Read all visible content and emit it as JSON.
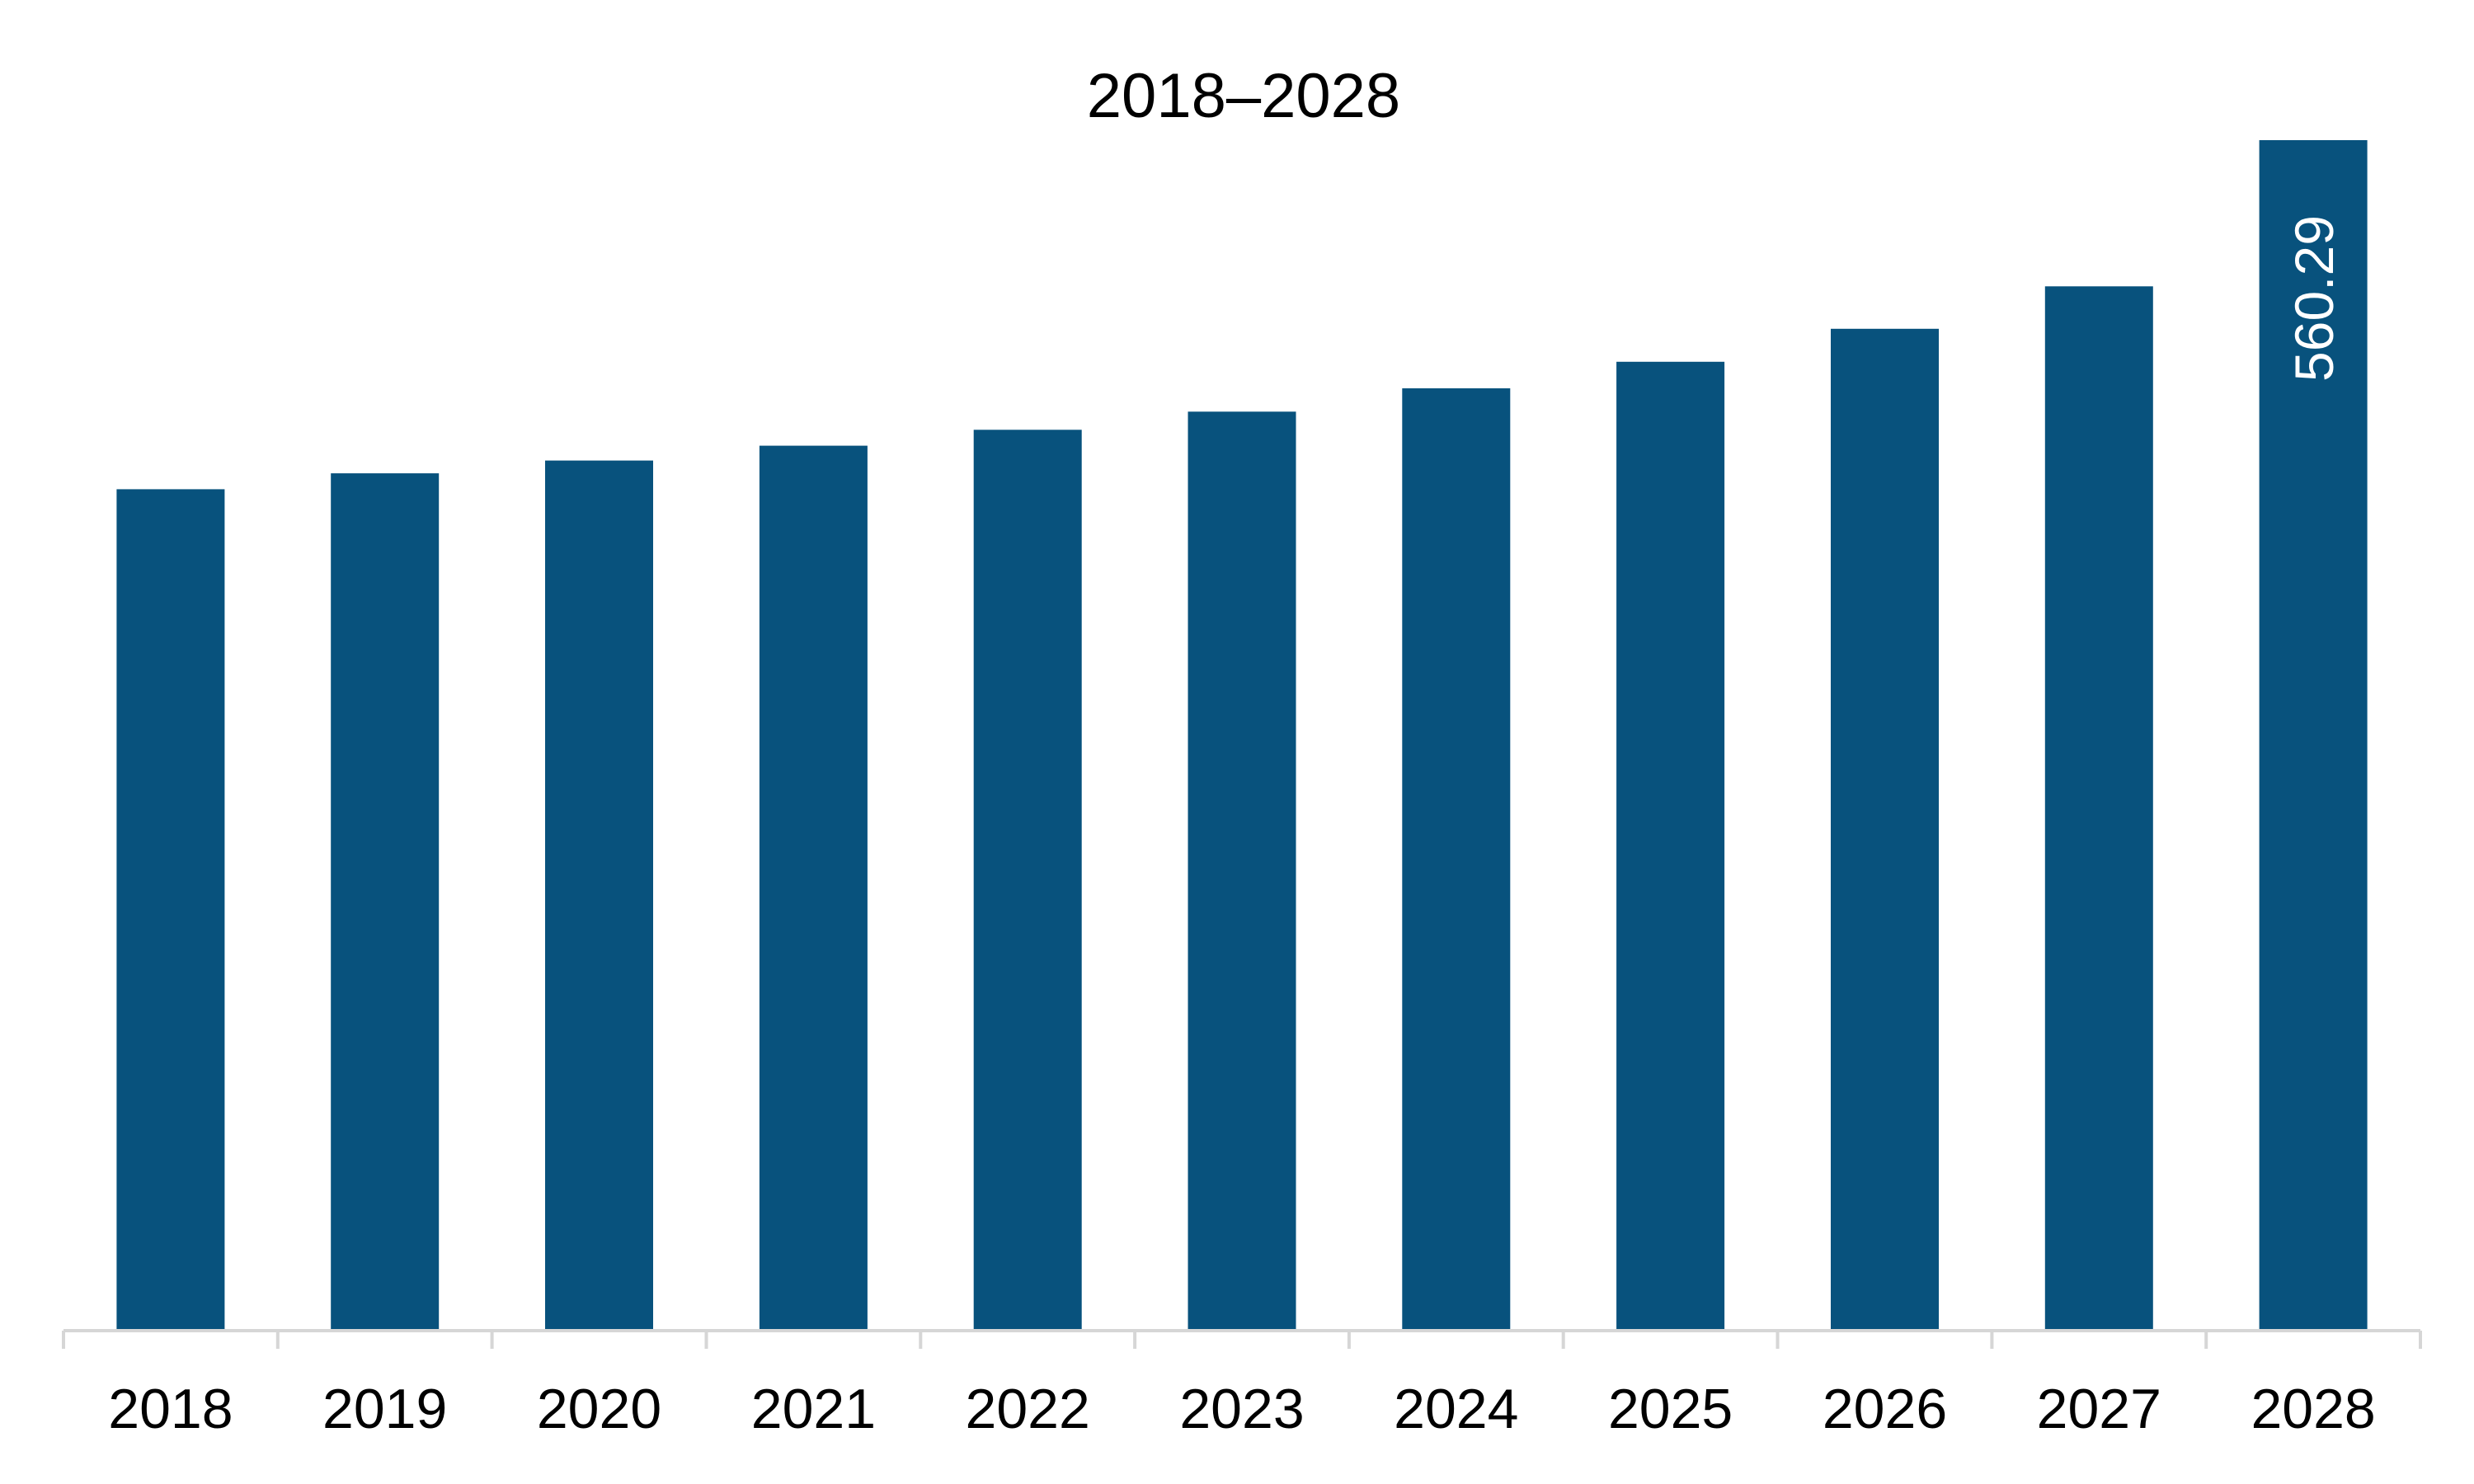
{
  "chart_data": {
    "type": "bar",
    "title": "2018–2028",
    "xlabel": "",
    "ylabel": "",
    "categories": [
      "2018",
      "2019",
      "2020",
      "2021",
      "2022",
      "2023",
      "2024",
      "2025",
      "2026",
      "2027",
      "2028"
    ],
    "values": [
      396.0,
      403.5,
      409.5,
      416.5,
      424.0,
      432.5,
      443.5,
      456.0,
      471.5,
      491.5,
      560.29
    ],
    "data_labels": {
      "10": "560.29"
    },
    "ylim": [
      0,
      560.29
    ],
    "grid": false,
    "legend": "none",
    "bar_color": "#08527d",
    "axis_color": "#d6d6d6"
  }
}
